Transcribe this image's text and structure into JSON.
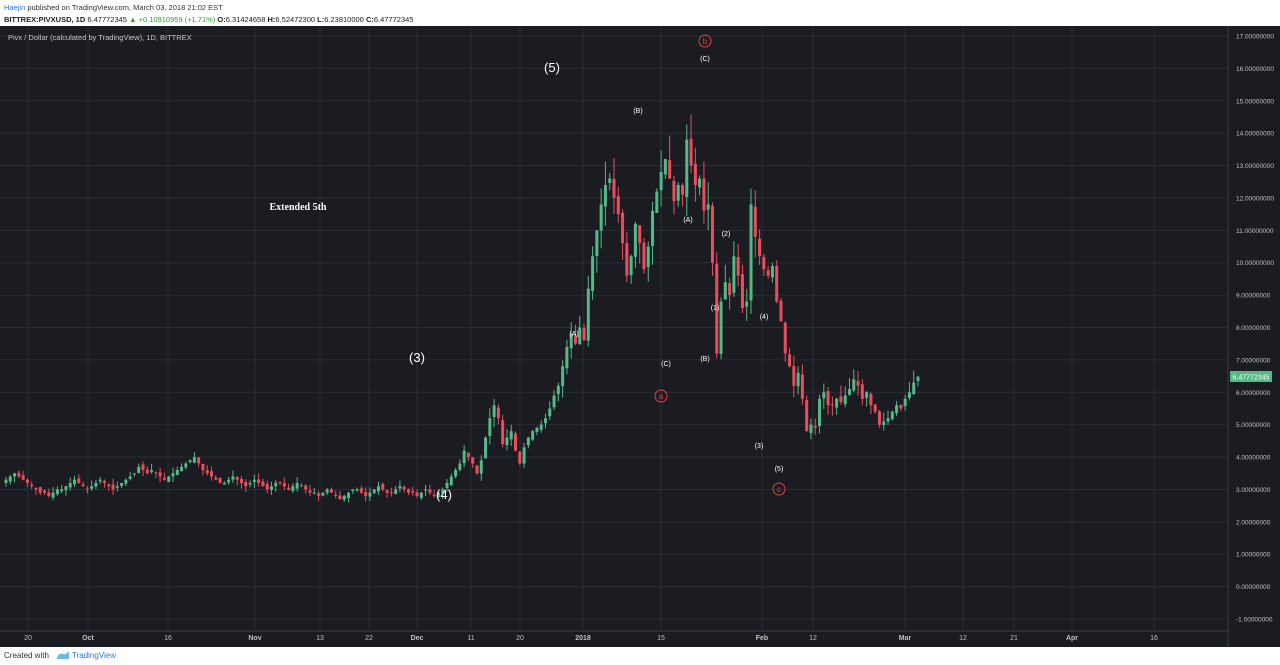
{
  "header": {
    "author": "Haejin",
    "published": "published on TradingView.com, March 03, 2018 21:02 EST",
    "symbol": "BITTREX:PIVXUSD, 1D",
    "price": "6.47772345",
    "change": "▲ +0.10910959 (+1.71%)",
    "o_label": "O:",
    "o_val": "6.31424658",
    "h_label": "H:",
    "h_val": "6.52472300",
    "l_label": "L:",
    "l_val": "6.23810000",
    "c_label": "C:",
    "c_val": "6.47772345"
  },
  "chart_title": "Pivx / Dollar (calculated by TradingView), 1D, BITTREX",
  "last_price_tag": "6.47772345",
  "footer": {
    "created": "Created with",
    "brand": "TradingView"
  },
  "colors": {
    "up": "#53b987",
    "down": "#eb4d5c",
    "bg": "#1b1c22",
    "grid": "#2a2d36",
    "circle_label": "#e0403e",
    "axis_text": "#c0c0c0"
  },
  "chart_data": {
    "type": "candlestick",
    "title": "Pivx / Dollar (calculated by TradingView), 1D, BITTREX",
    "ylim": [
      -1,
      17
    ],
    "y_ticks": [
      "17.00000000",
      "16.00000000",
      "15.00000000",
      "14.00000000",
      "13.00000000",
      "12.00000000",
      "11.00000000",
      "10.00000000",
      "9.00000000",
      "8.00000000",
      "7.00000000",
      "6.00000000",
      "5.00000000",
      "4.00000000",
      "3.00000000",
      "2.00000000",
      "1.00000000",
      "0.00000000",
      "-1.00000000"
    ],
    "x_ticks": [
      "20",
      "Oct",
      "16",
      "Nov",
      "13",
      "22",
      "Dec",
      "11",
      "20",
      "2018",
      "15",
      "Feb",
      "12",
      "Mar",
      "12",
      "21",
      "Apr",
      "16"
    ],
    "annotations": [
      "(5)",
      "(3)",
      "(4)",
      "Extended 5th",
      "(B)",
      "(A)",
      "(C)",
      "(A)",
      "(B)",
      "(C)",
      "(1)",
      "(2)",
      "(3)",
      "(4)",
      "(5)"
    ],
    "circle_labels": [
      "b",
      "a",
      "c"
    ],
    "close_series": [
      3.3,
      3.4,
      3.5,
      3.4,
      3.3,
      3.2,
      3.1,
      3.0,
      2.9,
      2.9,
      2.8,
      2.9,
      3.0,
      3.0,
      3.1,
      3.2,
      3.3,
      3.2,
      3.1,
      3.0,
      3.1,
      3.2,
      3.3,
      3.2,
      3.1,
      3.0,
      3.1,
      3.2,
      3.3,
      3.4,
      3.5,
      3.7,
      3.6,
      3.5,
      3.6,
      3.5,
      3.4,
      3.3,
      3.4,
      3.5,
      3.6,
      3.7,
      3.8,
      3.9,
      4.0,
      3.8,
      3.6,
      3.5,
      3.4,
      3.3,
      3.2,
      3.2,
      3.3,
      3.4,
      3.3,
      3.2,
      3.1,
      3.2,
      3.3,
      3.2,
      3.1,
      3.0,
      3.1,
      3.2,
      3.2,
      3.1,
      3.0,
      3.1,
      3.2,
      3.1,
      3.0,
      2.9,
      2.9,
      2.8,
      2.9,
      3.0,
      2.9,
      2.8,
      2.7,
      2.8,
      2.9,
      3.0,
      3.0,
      2.9,
      2.8,
      2.9,
      3.0,
      3.1,
      3.0,
      2.9,
      2.9,
      3.0,
      3.1,
      3.0,
      2.9,
      2.9,
      2.8,
      2.9,
      3.0,
      2.9,
      2.8,
      2.9,
      3.0,
      3.2,
      3.4,
      3.6,
      3.8,
      4.2,
      4.0,
      3.8,
      3.5,
      3.9,
      4.6,
      5.2,
      5.6,
      5.2,
      4.4,
      4.6,
      4.8,
      4.2,
      3.8,
      4.3,
      4.6,
      4.8,
      4.9,
      5.0,
      5.2,
      5.5,
      5.9,
      6.2,
      6.8,
      7.4,
      7.8,
      7.5,
      8.0,
      7.6,
      9.2,
      10.2,
      11.0,
      11.8,
      12.4,
      12.6,
      12.0,
      11.5,
      10.6,
      9.6,
      10.2,
      11.2,
      10.6,
      9.8,
      10.5,
      11.6,
      12.2,
      12.8,
      13.2,
      12.6,
      11.9,
      12.4,
      12.1,
      13.8,
      13.0,
      12.4,
      12.6,
      11.6,
      11.8,
      10.0,
      7.2,
      8.8,
      9.4,
      9.0,
      10.2,
      9.6,
      8.6,
      8.8,
      11.8,
      10.8,
      10.2,
      9.8,
      9.6,
      9.9,
      8.8,
      8.2,
      7.2,
      6.8,
      6.2,
      6.6,
      5.8,
      4.8,
      5.0,
      4.9,
      5.8,
      6.0,
      5.6,
      5.6,
      5.8,
      5.7,
      5.9,
      6.1,
      6.4,
      6.2,
      5.8,
      6.0,
      5.6,
      5.4,
      5.0,
      5.1,
      5.2,
      5.4,
      5.6,
      5.5,
      5.8,
      6.0,
      6.3,
      6.48
    ]
  }
}
